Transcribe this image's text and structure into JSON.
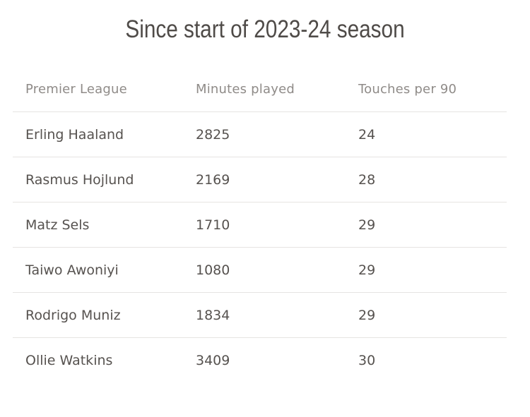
{
  "chart_data": {
    "type": "table",
    "title": "Since start of 2023-24 season",
    "columns": [
      "Premier League",
      "Minutes played",
      "Touches per 90"
    ],
    "rows": [
      [
        "Erling Haaland",
        2825,
        24
      ],
      [
        "Rasmus Hojlund",
        2169,
        28
      ],
      [
        "Matz Sels",
        1710,
        29
      ],
      [
        "Taiwo Awoniyi",
        1080,
        29
      ],
      [
        "Rodrigo Muniz",
        1834,
        29
      ],
      [
        "Ollie Watkins",
        3409,
        30
      ]
    ]
  },
  "colors": {
    "background": "#ffffff",
    "title": "#4f4b48",
    "header": "#8f8b88",
    "text": "#56524f",
    "divider": "#e6e4e2"
  }
}
